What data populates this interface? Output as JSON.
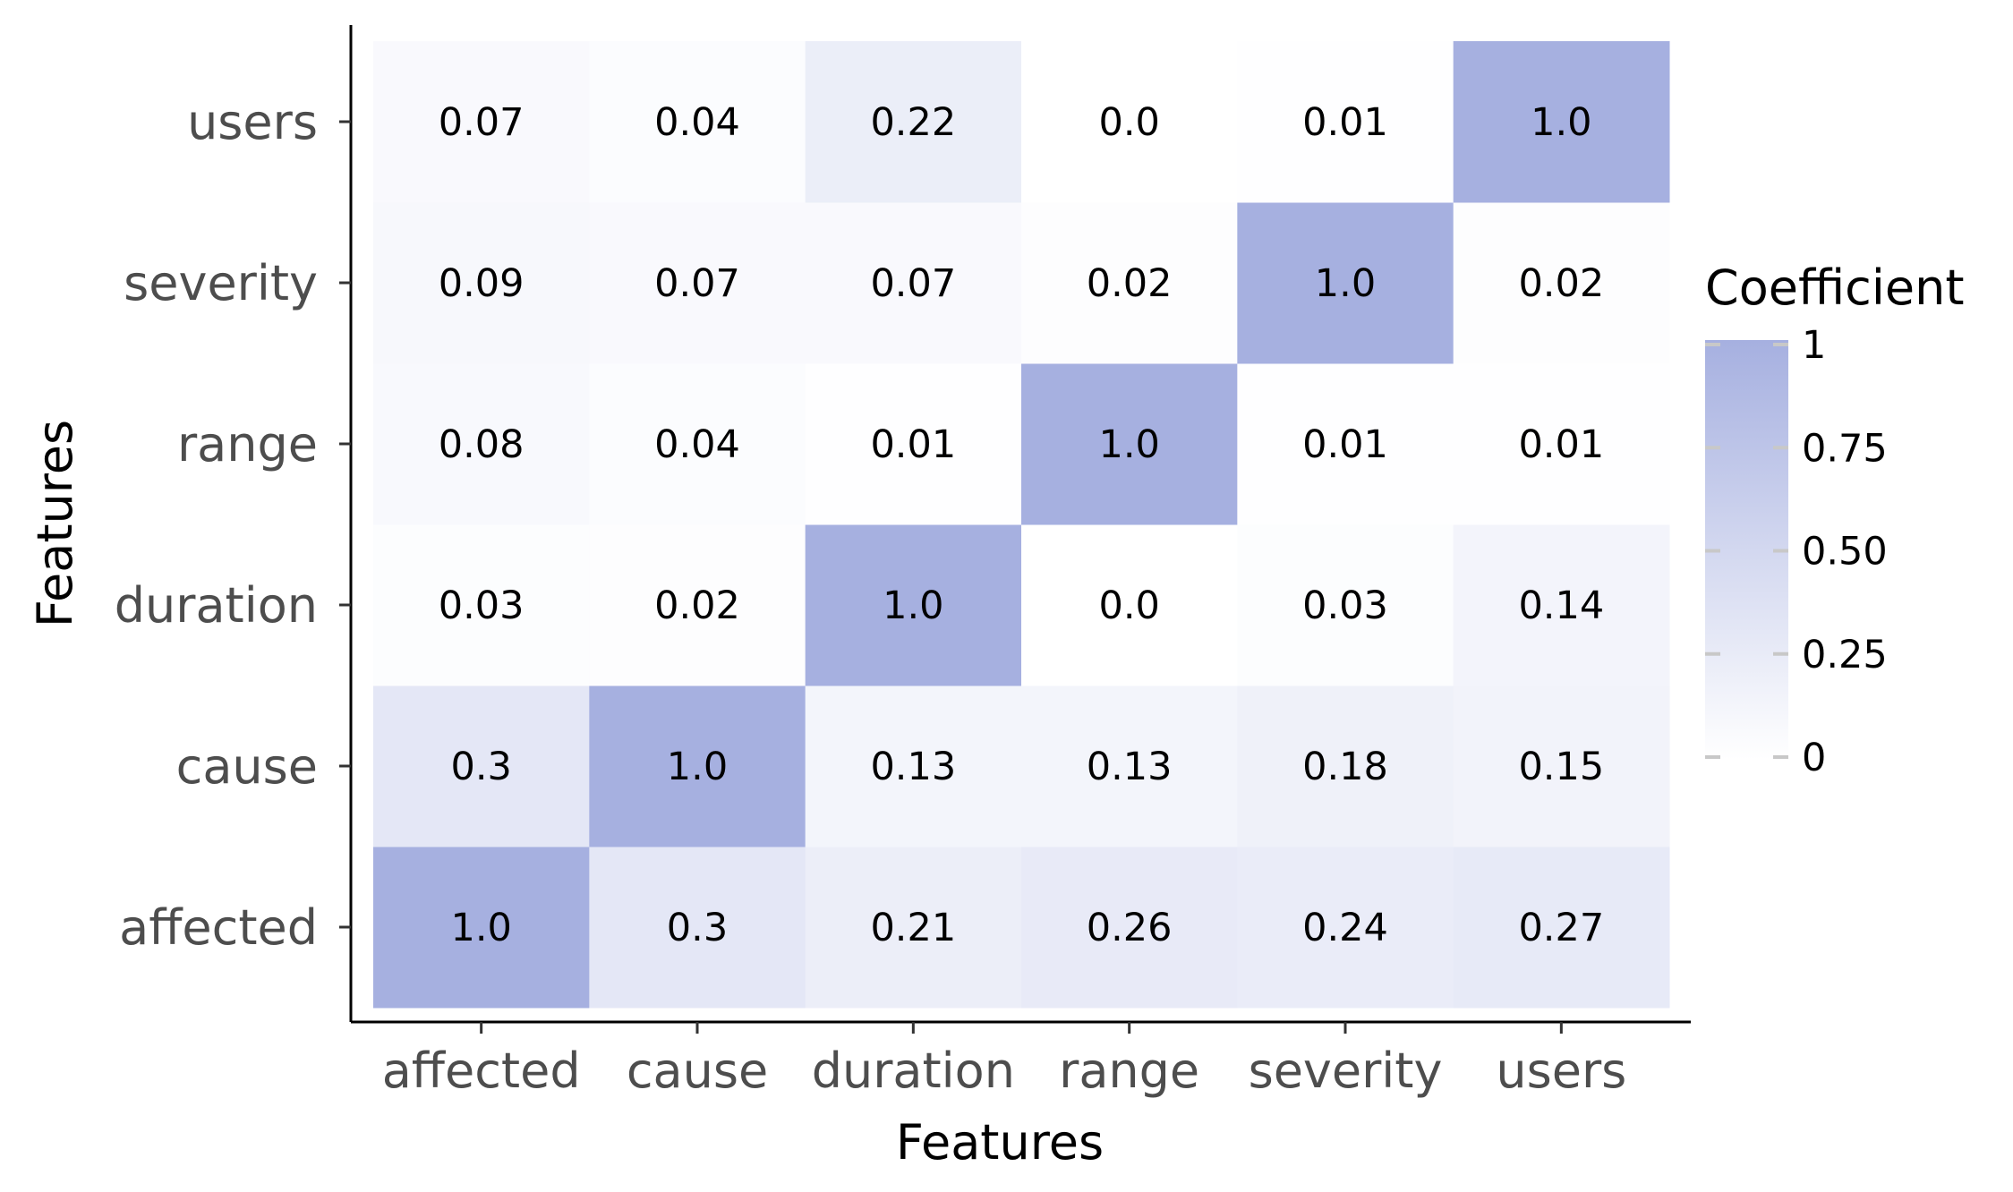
{
  "chart_data": {
    "type": "heatmap",
    "x_categories": [
      "affected",
      "cause",
      "duration",
      "range",
      "severity",
      "users"
    ],
    "y_categories": [
      "affected",
      "cause",
      "duration",
      "range",
      "severity",
      "users"
    ],
    "values": [
      [
        1.0,
        0.3,
        0.21,
        0.26,
        0.24,
        0.27
      ],
      [
        0.3,
        1.0,
        0.13,
        0.13,
        0.18,
        0.15
      ],
      [
        0.03,
        0.02,
        1.0,
        0.0,
        0.03,
        0.14
      ],
      [
        0.08,
        0.04,
        0.01,
        1.0,
        0.01,
        0.01
      ],
      [
        0.09,
        0.07,
        0.07,
        0.02,
        1.0,
        0.02
      ],
      [
        0.07,
        0.04,
        0.22,
        0.0,
        0.01,
        1.0
      ]
    ],
    "cell_labels": [
      [
        "1.0",
        "0.3",
        "0.21",
        "0.26",
        "0.24",
        "0.27"
      ],
      [
        "0.3",
        "1.0",
        "0.13",
        "0.13",
        "0.18",
        "0.15"
      ],
      [
        "0.03",
        "0.02",
        "1.0",
        "0.0",
        "0.03",
        "0.14"
      ],
      [
        "0.08",
        "0.04",
        "0.01",
        "1.0",
        "0.01",
        "0.01"
      ],
      [
        "0.09",
        "0.07",
        "0.07",
        "0.02",
        "1.0",
        "0.02"
      ],
      [
        "0.07",
        "0.04",
        "0.22",
        "0.0",
        "0.01",
        "1.0"
      ]
    ],
    "xlabel": "Features",
    "ylabel": "Features",
    "legend": {
      "title": "Coefficient",
      "ticks": [
        0,
        0.25,
        0.5,
        0.75,
        1
      ],
      "tick_labels": [
        "0",
        "0.25",
        "0.50",
        "0.75",
        "1"
      ],
      "range": [
        0,
        1
      ],
      "placement": "right"
    },
    "colors": {
      "low": "#ffffff",
      "high": "#a6b0e0"
    }
  }
}
